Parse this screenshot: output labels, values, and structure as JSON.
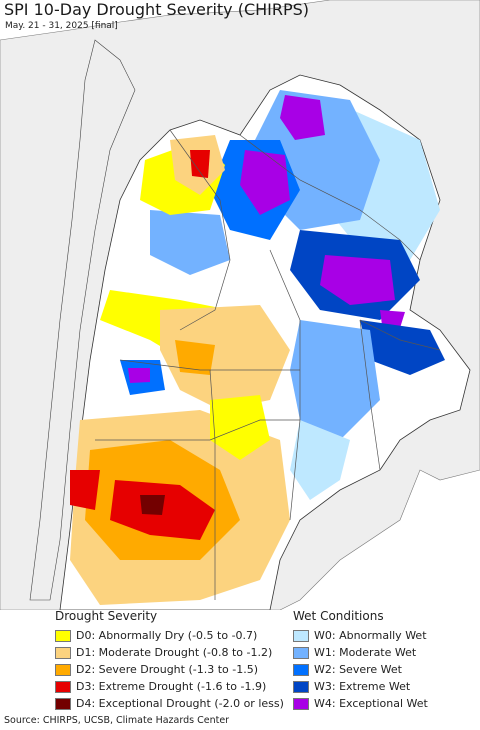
{
  "title": "SPI 10-Day Drought Severity (CHIRPS)",
  "subtitle": "May. 21 - 31, 2025 [final]",
  "legend_drought": {
    "heading": "Drought Severity",
    "items": [
      {
        "label": "D0: Abnormally Dry (-0.5 to -0.7)",
        "color": "#ffff00"
      },
      {
        "label": "D1: Moderate Drought (-0.8 to -1.2)",
        "color": "#fcd37f"
      },
      {
        "label": "D2: Severe Drought (-1.3 to -1.5)",
        "color": "#ffaa00"
      },
      {
        "label": "D3: Extreme Drought (-1.6 to -1.9)",
        "color": "#e60000"
      },
      {
        "label": "D4: Exceptional Drought (-2.0 or less)",
        "color": "#730000"
      }
    ]
  },
  "legend_wet": {
    "heading": "Wet Conditions",
    "items": [
      {
        "label": "W0: Abnormally Wet",
        "color": "#bee8ff"
      },
      {
        "label": "W1: Moderate Wet",
        "color": "#73b2ff"
      },
      {
        "label": "W2: Severe Wet",
        "color": "#0070ff"
      },
      {
        "label": "W3: Extreme Wet",
        "color": "#0045c4"
      },
      {
        "label": "W4: Exceptional Wet",
        "color": "#a800e6"
      }
    ]
  },
  "source": "Source: CHIRPS, UCSB, Climate Hazards Center",
  "colors": {
    "land_background": "#eeeeee",
    "ocean": "#ffffff",
    "border": "#444444"
  }
}
